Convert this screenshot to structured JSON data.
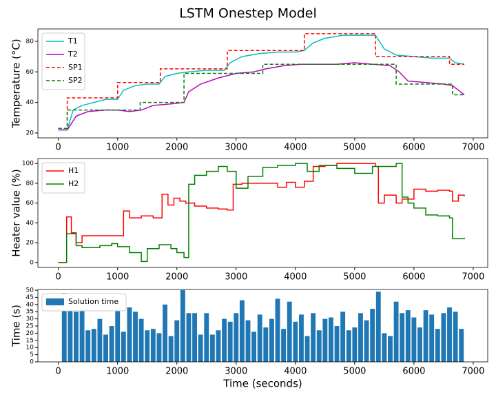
{
  "title": "LSTM Onestep Model",
  "chart_data": [
    {
      "type": "line",
      "ylabel": "Temperature (°C)",
      "xlim": [
        -345,
        7245
      ],
      "ylim": [
        16.8,
        88.1
      ],
      "xticks": [
        0,
        1000,
        2000,
        3000,
        4000,
        5000,
        6000,
        7000
      ],
      "yticks": [
        20,
        40,
        60,
        80
      ],
      "legend": "upper left",
      "series": [
        {
          "name": "T1",
          "color": "#00bfbf",
          "linestyle": "-",
          "x": [
            0,
            150,
            250,
            400,
            600,
            800,
            1000,
            1100,
            1300,
            1500,
            1700,
            1800,
            2000,
            2200,
            2500,
            2800,
            2900,
            3100,
            3400,
            3700,
            4000,
            4150,
            4300,
            4500,
            4800,
            5100,
            5350,
            5500,
            5700,
            6000,
            6300,
            6600,
            6700,
            6850
          ],
          "values": [
            22,
            22,
            35,
            38,
            40,
            42,
            42,
            48,
            51,
            52,
            52,
            57,
            59,
            60,
            61,
            61,
            66,
            70,
            72,
            73,
            73,
            74,
            79,
            82,
            84,
            84,
            84,
            75,
            71,
            70,
            69,
            69,
            66,
            65
          ]
        },
        {
          "name": "T2",
          "color": "#bf00bf",
          "linestyle": "-",
          "x": [
            0,
            150,
            300,
            500,
            800,
            1000,
            1200,
            1400,
            1600,
            1900,
            2120,
            2200,
            2400,
            2700,
            3000,
            3300,
            3500,
            3800,
            4100,
            4400,
            4700,
            5000,
            5300,
            5600,
            5750,
            5900,
            6200,
            6500,
            6650,
            6850
          ],
          "values": [
            22,
            22,
            31,
            34,
            35,
            35,
            34,
            35,
            38,
            39,
            40,
            47,
            52,
            56,
            59,
            60,
            62,
            64,
            65,
            65,
            65,
            66,
            65,
            64,
            60,
            54,
            53,
            52,
            51,
            45
          ]
        },
        {
          "name": "SP1",
          "color": "#ff0000",
          "linestyle": "--",
          "x": [
            0,
            150,
            150,
            1000,
            1000,
            1720,
            1720,
            2850,
            2850,
            4150,
            4150,
            5350,
            5350,
            6600,
            6600,
            6850
          ],
          "values": [
            23,
            23,
            43,
            43,
            53,
            53,
            62,
            62,
            74,
            74,
            85,
            85,
            70,
            70,
            65,
            65
          ]
        },
        {
          "name": "SP2",
          "color": "#008000",
          "linestyle": "--",
          "x": [
            0,
            150,
            150,
            1380,
            1380,
            2120,
            2120,
            3450,
            3450,
            5700,
            5700,
            6650,
            6650,
            6850
          ],
          "values": [
            23,
            23,
            35,
            35,
            40,
            40,
            59,
            59,
            65,
            65,
            52,
            52,
            45,
            45
          ]
        }
      ]
    },
    {
      "type": "line",
      "drawstyle": "steps-post",
      "ylabel": "Heater value (%)",
      "xlim": [
        -345,
        7245
      ],
      "ylim": [
        -5,
        105
      ],
      "xticks": [
        0,
        1000,
        2000,
        3000,
        4000,
        5000,
        6000,
        7000
      ],
      "yticks": [
        0,
        20,
        40,
        60,
        80,
        100
      ],
      "legend": "upper left",
      "series": [
        {
          "name": "H1",
          "color": "#ff0000",
          "linestyle": "-",
          "x": [
            0,
            140,
            220,
            300,
            400,
            1000,
            1100,
            1200,
            1400,
            1600,
            1750,
            1850,
            1950,
            2050,
            2150,
            2300,
            2500,
            2700,
            2850,
            2950,
            3100,
            3300,
            3500,
            3700,
            3850,
            4000,
            4150,
            4300,
            4500,
            4700,
            5000,
            5350,
            5400,
            5500,
            5700,
            5800,
            6000,
            6200,
            6400,
            6600,
            6650,
            6750,
            6850
          ],
          "values": [
            0,
            46,
            30,
            20,
            27,
            27,
            52,
            45,
            47,
            45,
            69,
            58,
            65,
            62,
            60,
            57,
            55,
            54,
            53,
            79,
            80,
            80,
            80,
            76,
            81,
            76,
            82,
            97,
            98,
            100,
            100,
            97,
            60,
            68,
            60,
            64,
            74,
            72,
            73,
            72,
            62,
            68,
            67
          ]
        },
        {
          "name": "H2",
          "color": "#008000",
          "linestyle": "-",
          "x": [
            0,
            140,
            300,
            400,
            700,
            900,
            1000,
            1200,
            1400,
            1500,
            1700,
            1900,
            2000,
            2120,
            2200,
            2300,
            2500,
            2700,
            2850,
            3000,
            3200,
            3450,
            3700,
            4000,
            4200,
            4400,
            4700,
            5000,
            5300,
            5700,
            5800,
            5900,
            6000,
            6200,
            6400,
            6600,
            6650,
            6850
          ],
          "values": [
            0,
            29,
            17,
            15,
            17,
            19,
            16,
            10,
            1,
            14,
            18,
            14,
            10,
            5,
            79,
            88,
            92,
            97,
            92,
            75,
            87,
            96,
            98,
            100,
            92,
            98,
            95,
            90,
            97,
            100,
            66,
            60,
            55,
            48,
            47,
            45,
            24,
            25
          ]
        }
      ]
    },
    {
      "type": "bar",
      "ylabel": "Time (s)",
      "xlabel": "Time (seconds)",
      "xlim": [
        -345,
        7245
      ],
      "ylim": [
        0,
        50.5
      ],
      "xticks": [
        0,
        1000,
        2000,
        3000,
        4000,
        5000,
        6000,
        7000
      ],
      "yticks": [
        0,
        5,
        10,
        15,
        20,
        25,
        30,
        35,
        40,
        45,
        50
      ],
      "legend": "upper left",
      "bar_width": 80,
      "series": [
        {
          "name": "Solution time",
          "color": "#1f77b4",
          "x": [
            100,
            200,
            300,
            400,
            500,
            600,
            700,
            800,
            900,
            1000,
            1100,
            1200,
            1300,
            1400,
            1500,
            1600,
            1700,
            1800,
            1900,
            2000,
            2100,
            2200,
            2300,
            2400,
            2500,
            2600,
            2700,
            2800,
            2900,
            3000,
            3100,
            3200,
            3300,
            3400,
            3500,
            3600,
            3700,
            3800,
            3900,
            4000,
            4100,
            4200,
            4300,
            4400,
            4500,
            4600,
            4700,
            4800,
            4900,
            5000,
            5100,
            5200,
            5300,
            5400,
            5500,
            5600,
            5700,
            5800,
            5900,
            6000,
            6100,
            6200,
            6300,
            6400,
            6500,
            6600,
            6700,
            6800
          ],
          "values": [
            48,
            46,
            35,
            45,
            22,
            23,
            30,
            19,
            25,
            44,
            21,
            38,
            35,
            30,
            22,
            23,
            20,
            40,
            18,
            29,
            50,
            34,
            34,
            19,
            34,
            19,
            22,
            30,
            28,
            34,
            43,
            29,
            21,
            33,
            24,
            30,
            44,
            23,
            42,
            28,
            33,
            18,
            34,
            22,
            30,
            31,
            25,
            35,
            22,
            24,
            34,
            29,
            37,
            49,
            20,
            18,
            42,
            34,
            36,
            31,
            24,
            36,
            33,
            23,
            34,
            38,
            35,
            23
          ]
        }
      ]
    }
  ]
}
